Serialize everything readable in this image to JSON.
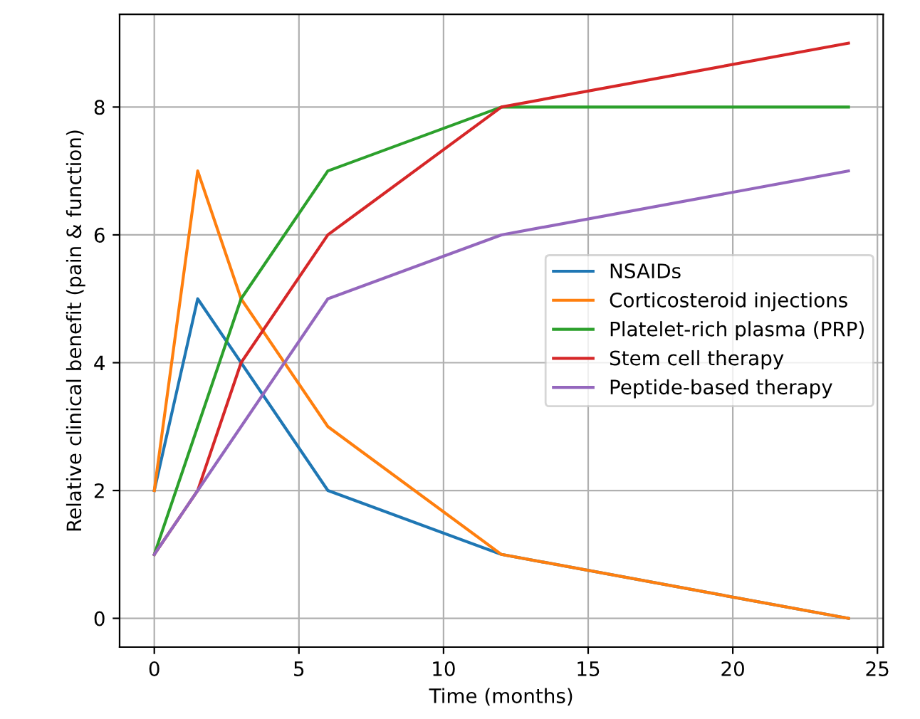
{
  "chart_data": {
    "type": "line",
    "xlabel": "Time (months)",
    "ylabel": "Relative clinical benefit (pain & function)",
    "x": [
      0,
      1.5,
      3,
      6,
      12,
      24
    ],
    "series": [
      {
        "name": "NSAIDs",
        "color": "#1f77b4",
        "values": [
          2,
          5,
          4,
          2,
          1,
          0
        ]
      },
      {
        "name": "Corticosteroid injections",
        "color": "#ff7f0e",
        "values": [
          2,
          7,
          5,
          3,
          1,
          0
        ]
      },
      {
        "name": "Platelet-rich plasma (PRP)",
        "color": "#2ca02c",
        "values": [
          1,
          3,
          5,
          7,
          8,
          8
        ]
      },
      {
        "name": "Stem cell therapy",
        "color": "#d62728",
        "values": [
          1,
          2,
          4,
          6,
          8,
          9
        ]
      },
      {
        "name": "Peptide-based therapy",
        "color": "#9467bd",
        "values": [
          1,
          2,
          3,
          5,
          6,
          7
        ]
      }
    ],
    "xlim": [
      -1.2,
      25.2
    ],
    "ylim": [
      -0.45,
      9.45
    ],
    "xticks": [
      0,
      5,
      10,
      15,
      20,
      25
    ],
    "yticks": [
      0,
      2,
      4,
      6,
      8
    ],
    "grid": true,
    "legend": "center right",
    "marker": "none",
    "line_style": "solid"
  }
}
